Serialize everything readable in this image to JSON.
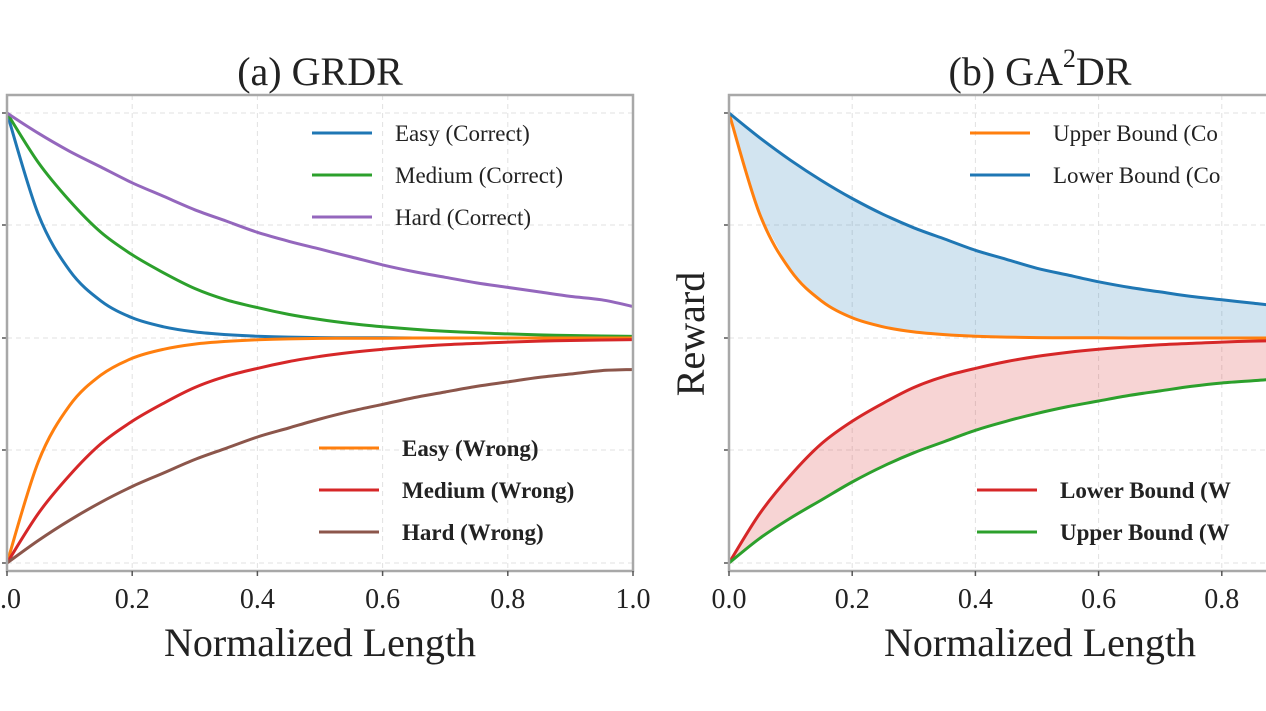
{
  "chart_data": [
    {
      "type": "line",
      "title": "(a) GRDR",
      "xlabel": "Normalized Length",
      "ylabel": "",
      "xlim": [
        0.0,
        1.0
      ],
      "ylim": [
        -1.05,
        1.05
      ],
      "xticks": [
        0.0,
        0.2,
        0.4,
        0.6,
        0.8,
        1.0
      ],
      "xtick_labels": [
        ".0",
        "0.2",
        "0.4",
        "0.6",
        "0.8",
        "1.0"
      ],
      "ytick_labels": [],
      "grid": true,
      "legends": [
        {
          "position": "top-right",
          "bold": false,
          "entries": [
            "Easy (Correct)",
            "Medium (Correct)",
            "Hard (Correct)"
          ]
        },
        {
          "position": "bottom-right",
          "bold": true,
          "entries": [
            "Easy (Wrong)",
            "Medium (Wrong)",
            "Hard (Wrong)"
          ]
        }
      ],
      "x": [
        0.0,
        0.05,
        0.1,
        0.15,
        0.2,
        0.25,
        0.3,
        0.35,
        0.4,
        0.45,
        0.5,
        0.55,
        0.6,
        0.65,
        0.7,
        0.75,
        0.8,
        0.85,
        0.9,
        0.95,
        1.0
      ],
      "series": [
        {
          "name": "Easy (Correct)",
          "color": "#1f77b4",
          "values": [
            1.0,
            0.55,
            0.3,
            0.165,
            0.09,
            0.05,
            0.027,
            0.015,
            0.008,
            0.004,
            0.002,
            0.001,
            0.001,
            0.0,
            0.0,
            0.0,
            0.0,
            0.0,
            0.0,
            0.0,
            0.0
          ]
        },
        {
          "name": "Medium (Correct)",
          "color": "#2ca02c",
          "values": [
            1.0,
            0.78,
            0.61,
            0.47,
            0.37,
            0.29,
            0.22,
            0.17,
            0.135,
            0.105,
            0.082,
            0.064,
            0.05,
            0.039,
            0.03,
            0.024,
            0.018,
            0.014,
            0.011,
            0.009,
            0.007
          ]
        },
        {
          "name": "Hard (Correct)",
          "color": "#9467bd",
          "values": [
            1.0,
            0.91,
            0.83,
            0.76,
            0.69,
            0.63,
            0.57,
            0.52,
            0.47,
            0.43,
            0.395,
            0.36,
            0.325,
            0.295,
            0.27,
            0.245,
            0.225,
            0.205,
            0.185,
            0.17,
            0.14
          ]
        },
        {
          "name": "Easy (Wrong)",
          "color": "#ff7f0e",
          "values": [
            -1.0,
            -0.55,
            -0.3,
            -0.165,
            -0.09,
            -0.05,
            -0.027,
            -0.015,
            -0.008,
            -0.004,
            -0.002,
            -0.001,
            -0.001,
            0.0,
            0.0,
            0.0,
            0.0,
            0.0,
            0.0,
            0.0,
            0.0
          ]
        },
        {
          "name": "Medium (Wrong)",
          "color": "#d62728",
          "values": [
            -1.0,
            -0.78,
            -0.61,
            -0.47,
            -0.37,
            -0.29,
            -0.22,
            -0.17,
            -0.135,
            -0.105,
            -0.082,
            -0.064,
            -0.05,
            -0.039,
            -0.03,
            -0.024,
            -0.018,
            -0.014,
            -0.011,
            -0.009,
            -0.007
          ]
        },
        {
          "name": "Hard (Wrong)",
          "color": "#8c564b",
          "values": [
            -1.0,
            -0.9,
            -0.81,
            -0.73,
            -0.66,
            -0.6,
            -0.54,
            -0.49,
            -0.44,
            -0.4,
            -0.36,
            -0.325,
            -0.295,
            -0.265,
            -0.24,
            -0.215,
            -0.195,
            -0.175,
            -0.16,
            -0.145,
            -0.14
          ]
        }
      ]
    },
    {
      "type": "area",
      "title": "(b) GA",
      "title_superscript": "2",
      "title_suffix": "DR",
      "xlabel": "Normalized Length",
      "ylabel": "Reward",
      "xlim": [
        0.0,
        1.0
      ],
      "ylim": [
        -1.05,
        1.05
      ],
      "xticks": [
        0.0,
        0.2,
        0.4,
        0.6,
        0.8
      ],
      "xtick_labels": [
        "0.0",
        "0.2",
        "0.4",
        "0.6",
        "0.8"
      ],
      "ytick_labels": [],
      "grid": true,
      "legends": [
        {
          "position": "top-right",
          "bold": false,
          "entries": [
            "Upper Bound (Co",
            "Lower Bound (Co"
          ]
        },
        {
          "position": "bottom-right",
          "bold": true,
          "entries": [
            "Lower Bound (W",
            "Upper Bound (W"
          ]
        }
      ],
      "x": [
        0.0,
        0.05,
        0.1,
        0.15,
        0.2,
        0.25,
        0.3,
        0.35,
        0.4,
        0.45,
        0.5,
        0.55,
        0.6,
        0.65,
        0.7,
        0.75,
        0.8,
        0.85,
        0.9,
        0.95,
        1.0
      ],
      "series": [
        {
          "name": "Upper Bound (Co",
          "color": "#ff7f0e",
          "values": [
            1.0,
            0.55,
            0.3,
            0.165,
            0.09,
            0.05,
            0.027,
            0.015,
            0.008,
            0.004,
            0.002,
            0.001,
            0.001,
            0.0,
            0.0,
            0.0,
            0.0,
            0.0,
            0.0,
            0.0,
            0.0
          ]
        },
        {
          "name": "Lower Bound (Co",
          "color": "#1f77b4",
          "values": [
            1.0,
            0.89,
            0.79,
            0.7,
            0.62,
            0.55,
            0.49,
            0.44,
            0.39,
            0.35,
            0.31,
            0.28,
            0.25,
            0.225,
            0.205,
            0.185,
            0.17,
            0.155,
            0.14,
            0.13,
            0.12
          ]
        },
        {
          "name": "Lower Bound (W",
          "color": "#d62728",
          "values": [
            -1.0,
            -0.78,
            -0.61,
            -0.47,
            -0.37,
            -0.29,
            -0.22,
            -0.17,
            -0.135,
            -0.105,
            -0.082,
            -0.064,
            -0.05,
            -0.039,
            -0.03,
            -0.024,
            -0.018,
            -0.014,
            -0.011,
            -0.009,
            -0.007
          ]
        },
        {
          "name": "Upper Bound (W",
          "color": "#2ca02c",
          "values": [
            -1.0,
            -0.89,
            -0.8,
            -0.72,
            -0.64,
            -0.57,
            -0.51,
            -0.46,
            -0.41,
            -0.37,
            -0.335,
            -0.305,
            -0.28,
            -0.255,
            -0.235,
            -0.215,
            -0.2,
            -0.19,
            -0.18,
            -0.175,
            -0.17
          ]
        }
      ],
      "fills": [
        {
          "between": [
            "Upper Bound (Co",
            "Lower Bound (Co"
          ],
          "color": "#1f77b4",
          "opacity": 0.2
        },
        {
          "between": [
            "Lower Bound (W",
            "Upper Bound (W"
          ],
          "color": "#d62728",
          "opacity": 0.2
        }
      ]
    }
  ]
}
